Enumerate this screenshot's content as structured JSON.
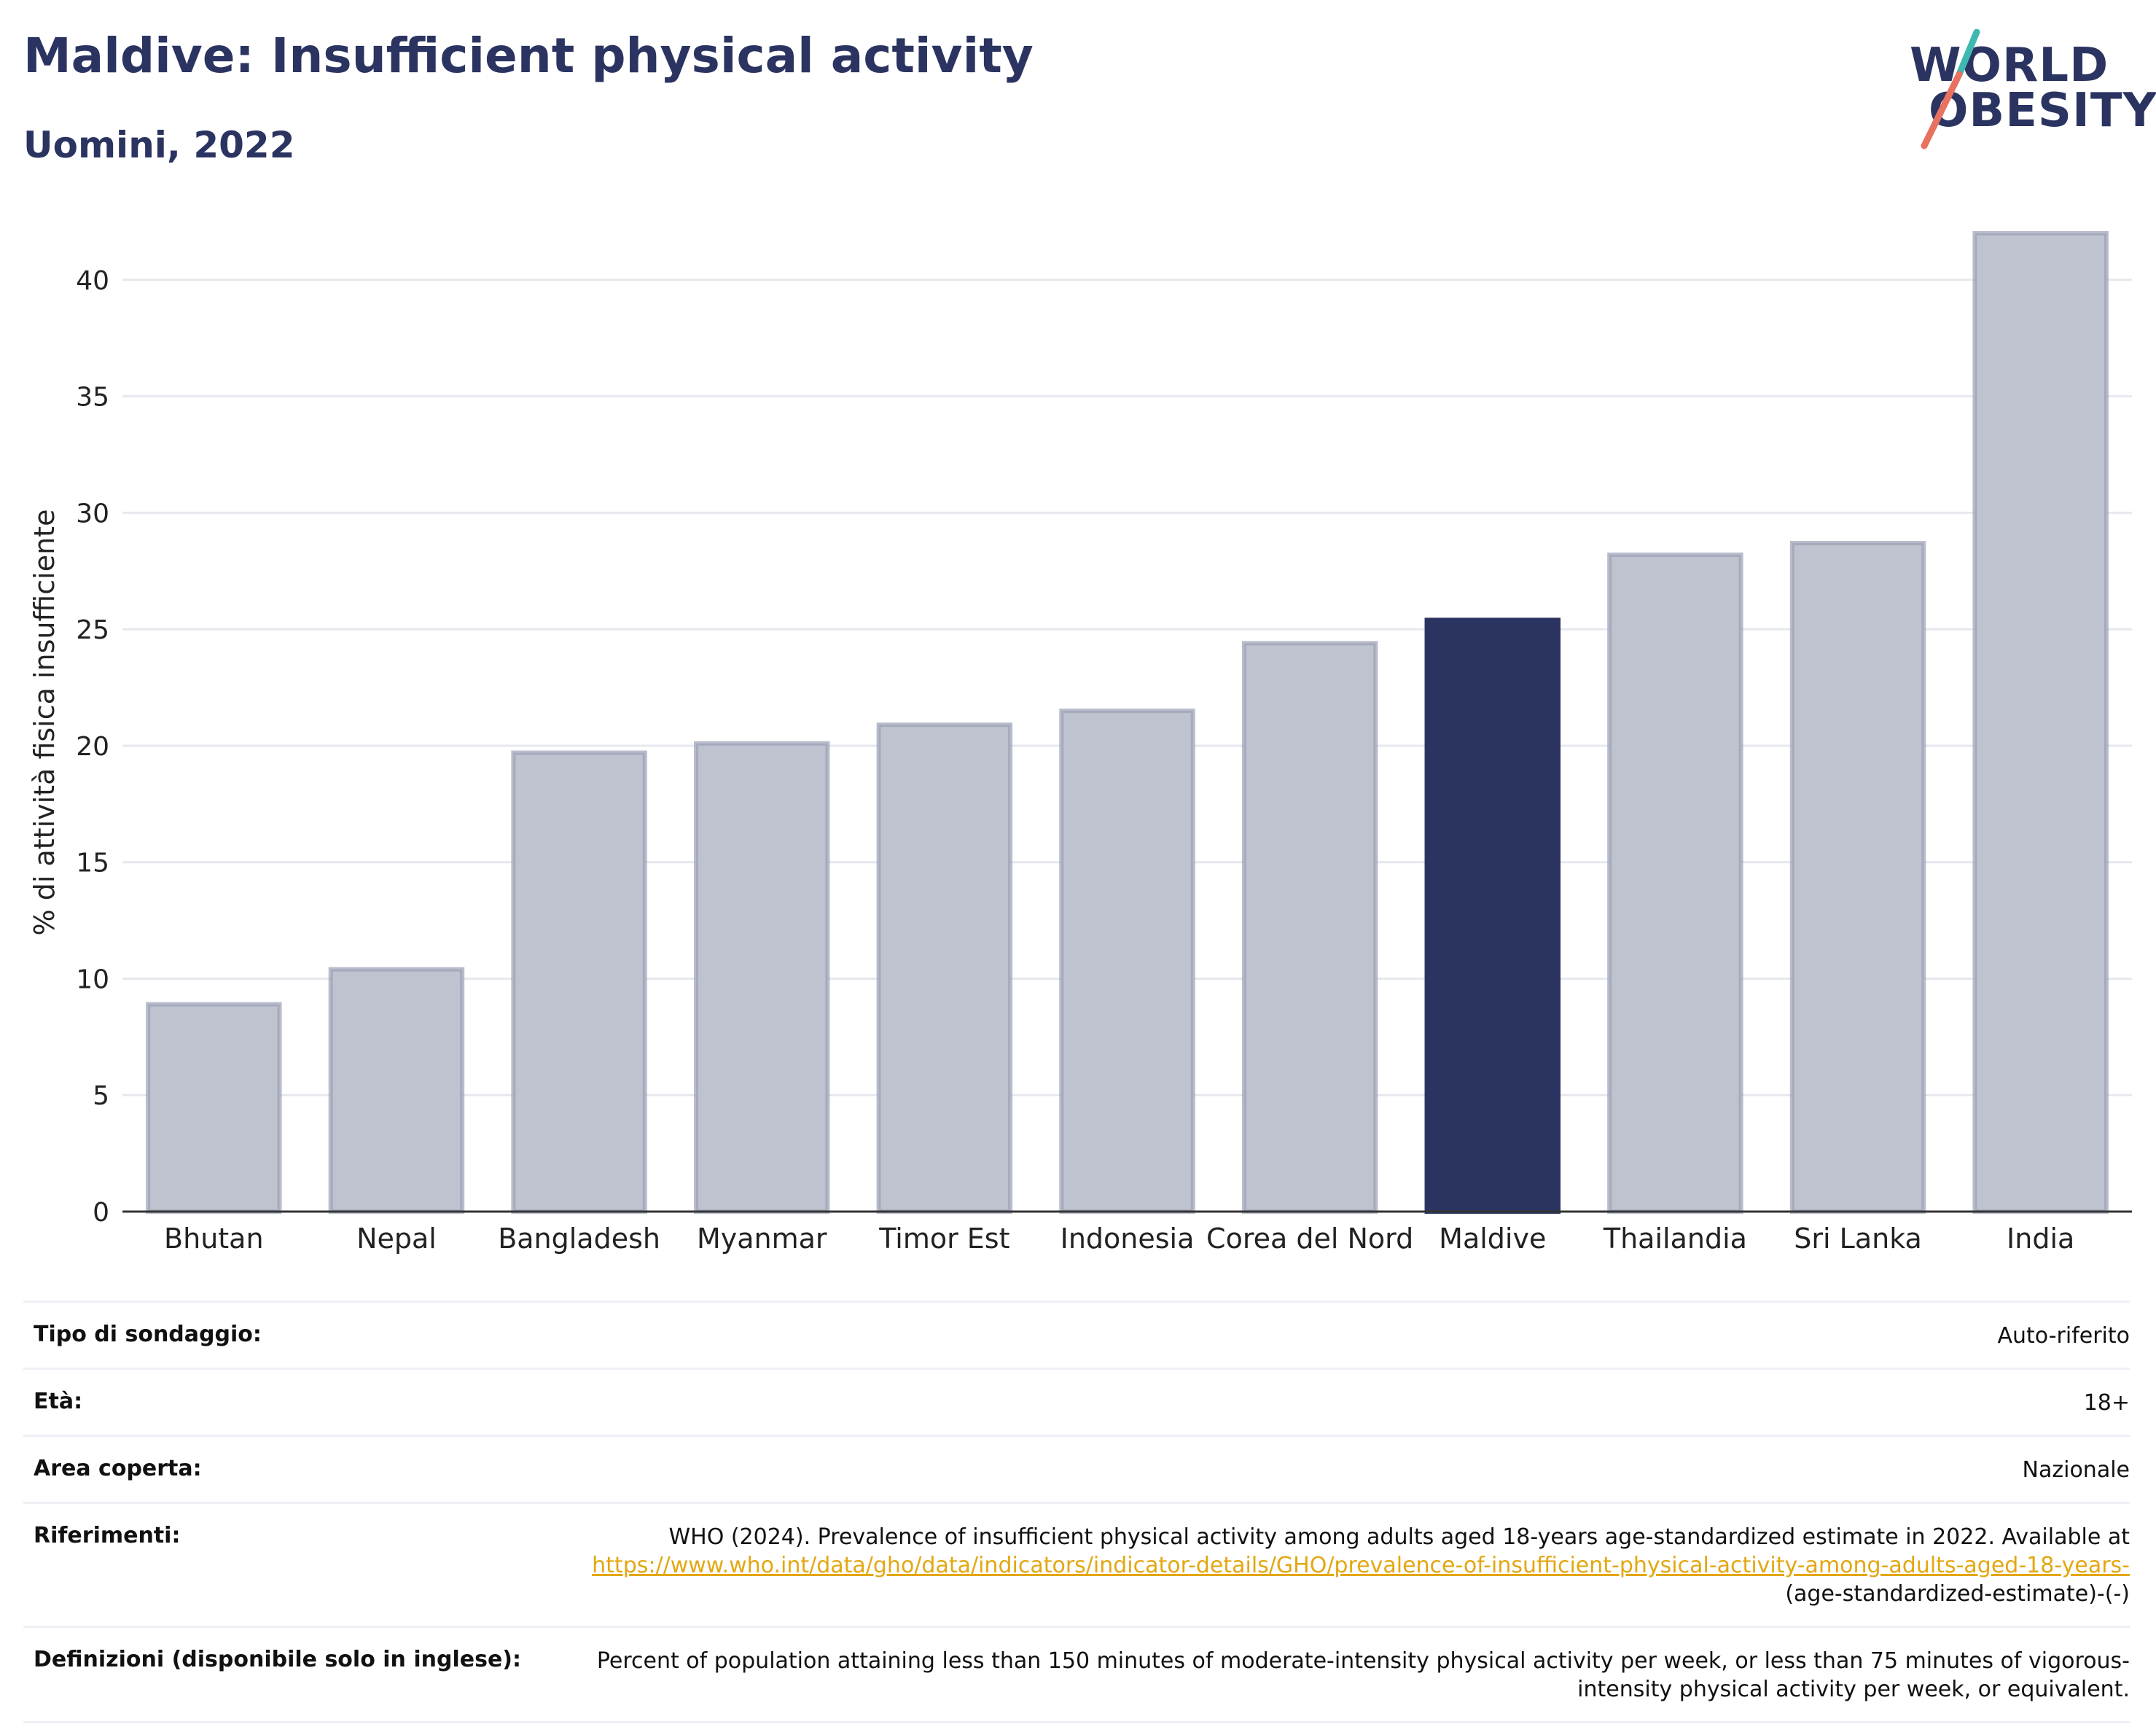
{
  "header": {
    "title": "Maldive: Insufficient physical activity",
    "subtitle": "Uomini, 2022",
    "logo_line1": "WORLD",
    "logo_line2": "OBESITY"
  },
  "colors": {
    "highlight_bar": "#2b3461",
    "other_bar": "#bfc3cf",
    "other_bar_edge": "#9aa0b5",
    "title": "#2b3461",
    "link": "#e3a711",
    "logo_teal": "#3fb8b1",
    "logo_coral": "#e8715f"
  },
  "chart_data": {
    "type": "bar",
    "title": "",
    "xlabel": "",
    "ylabel": "% di attività fisica insufficiente",
    "categories": [
      "Bhutan",
      "Nepal",
      "Bangladesh",
      "Myanmar",
      "Timor Est",
      "Indonesia",
      "Corea del Nord",
      "Maldive",
      "Thailandia",
      "Sri Lanka",
      "India"
    ],
    "values": [
      8.9,
      10.4,
      19.7,
      20.1,
      20.9,
      21.5,
      24.4,
      25.4,
      28.2,
      28.7,
      42.0
    ],
    "highlight": "Maldive",
    "ylim": [
      0,
      42
    ],
    "yticks": [
      0,
      5,
      10,
      15,
      20,
      25,
      30,
      35,
      40
    ],
    "grid": true
  },
  "meta": {
    "survey_label": "Tipo di sondaggio:",
    "survey_value": "Auto-riferito",
    "age_label": "Età:",
    "age_value": "18+",
    "area_label": "Area coperta:",
    "area_value": "Nazionale",
    "refs_label": "Riferimenti:",
    "refs_text": "WHO (2024). Prevalence of insufficient physical activity among adults aged 18-years age-standardized estimate in 2022. Available at",
    "refs_link": "https://www.who.int/data/gho/data/indicators/indicator-details/GHO/prevalence-of-insufficient-physical-activity-among-adults-aged-18-years-",
    "refs_tail": "(age-standardized-estimate)-(-)",
    "defs_label": "Definizioni (disponibile solo in inglese):",
    "defs_value": "Percent of population attaining less than 150 minutes of moderate-intensity physical activity per week, or less than 75 minutes of vigorous-intensity physical activity per week, or equivalent."
  }
}
